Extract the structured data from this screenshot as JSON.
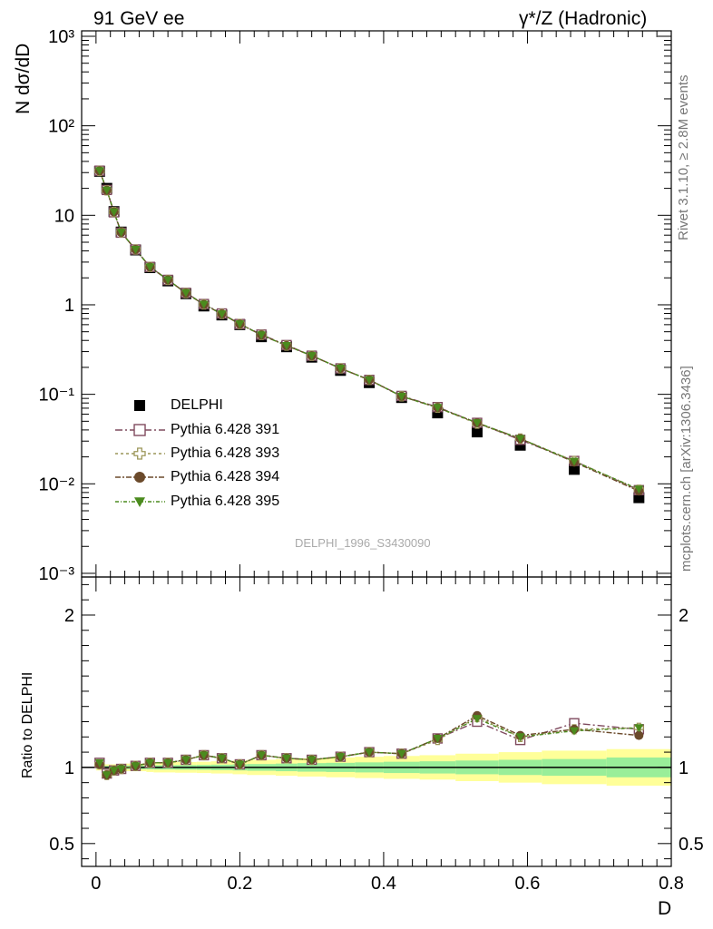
{
  "header": {
    "left": "91 GeV ee",
    "right": "γ*/Z (Hadronic)"
  },
  "side_labels": {
    "rivet": "Rivet 3.1.10, ≥ 2.8M events",
    "mcplots": "mcplots.cern.ch [arXiv:1306.3436]"
  },
  "watermark": "DELPHI_1996_S3430090",
  "chart_data": [
    {
      "type": "scatter",
      "panel": "main",
      "ylabel": "N dσ/dD",
      "yscale": "log",
      "ylim": [
        0.00091,
        1150
      ],
      "xlim": [
        -0.02,
        0.8
      ],
      "ytick_labels": [
        "10⁻³",
        "10⁻²",
        "10⁻¹",
        "1",
        "10",
        "10²",
        "10³"
      ],
      "legend_position": "lower-left",
      "x": [
        0.005,
        0.015,
        0.025,
        0.035,
        0.055,
        0.075,
        0.1,
        0.125,
        0.15,
        0.175,
        0.2,
        0.23,
        0.265,
        0.3,
        0.34,
        0.38,
        0.425,
        0.475,
        0.53,
        0.59,
        0.665,
        0.755
      ],
      "series": [
        {
          "name": "DELPHI",
          "color": "#000000",
          "marker": "square-filled",
          "values": [
            31,
            20,
            11,
            6.5,
            4.1,
            2.6,
            1.85,
            1.33,
            0.97,
            0.77,
            0.6,
            0.44,
            0.34,
            0.26,
            0.185,
            0.135,
            0.092,
            0.062,
            0.038,
            0.027,
            0.0145,
            0.007
          ]
        },
        {
          "name": "Pythia 6.428 391",
          "color": "#7f4a5e",
          "marker": "square-open",
          "values": [
            31.5,
            19.2,
            10.8,
            6.4,
            4.15,
            2.65,
            1.9,
            1.36,
            1.02,
            0.8,
            0.61,
            0.465,
            0.355,
            0.27,
            0.195,
            0.145,
            0.096,
            0.072,
            0.048,
            0.031,
            0.018,
            0.0085
          ]
        },
        {
          "name": "Pythia 6.428 393",
          "color": "#9c9659",
          "marker": "cross-open",
          "values": [
            31.3,
            19.0,
            10.9,
            6.45,
            4.15,
            2.65,
            1.9,
            1.35,
            1.01,
            0.79,
            0.61,
            0.46,
            0.35,
            0.27,
            0.195,
            0.145,
            0.095,
            0.071,
            0.047,
            0.032,
            0.018,
            0.0086
          ]
        },
        {
          "name": "Pythia 6.428 394",
          "color": "#6b4a2b",
          "marker": "circle-filled",
          "values": [
            31.4,
            19.0,
            10.9,
            6.45,
            4.15,
            2.65,
            1.9,
            1.35,
            1.01,
            0.79,
            0.61,
            0.46,
            0.35,
            0.27,
            0.195,
            0.145,
            0.095,
            0.071,
            0.048,
            0.032,
            0.0175,
            0.0083
          ]
        },
        {
          "name": "Pythia 6.428 395",
          "color": "#4b8b1e",
          "marker": "triangle-down-filled",
          "values": [
            31.4,
            19.1,
            10.9,
            6.45,
            4.15,
            2.65,
            1.9,
            1.36,
            1.01,
            0.79,
            0.61,
            0.46,
            0.35,
            0.27,
            0.195,
            0.145,
            0.095,
            0.071,
            0.048,
            0.032,
            0.0178,
            0.0087
          ]
        }
      ]
    },
    {
      "type": "scatter",
      "panel": "ratio",
      "ylabel": "Ratio to DELPHI",
      "xlabel": "D",
      "ylim": [
        0.35,
        2.25
      ],
      "xlim": [
        -0.02,
        0.8
      ],
      "xticks": [
        0,
        0.2,
        0.4,
        0.6,
        0.8
      ],
      "xtick_labels": [
        "0",
        "0.2",
        "0.4",
        "0.6",
        "0.8"
      ],
      "yticks": [
        0.5,
        1,
        2
      ],
      "ytick_labels": [
        "0.5",
        "1",
        "2"
      ],
      "reference_line": 1,
      "band_bins": [
        [
          0.0,
          0.01
        ],
        [
          0.01,
          0.02
        ],
        [
          0.02,
          0.03
        ],
        [
          0.03,
          0.04
        ],
        [
          0.04,
          0.07
        ],
        [
          0.07,
          0.08
        ],
        [
          0.08,
          0.11
        ],
        [
          0.11,
          0.14
        ],
        [
          0.14,
          0.16
        ],
        [
          0.16,
          0.19
        ],
        [
          0.19,
          0.21
        ],
        [
          0.21,
          0.25
        ],
        [
          0.25,
          0.28
        ],
        [
          0.28,
          0.32
        ],
        [
          0.32,
          0.36
        ],
        [
          0.36,
          0.4
        ],
        [
          0.4,
          0.45
        ],
        [
          0.45,
          0.5
        ],
        [
          0.5,
          0.56
        ],
        [
          0.56,
          0.62
        ],
        [
          0.62,
          0.71
        ],
        [
          0.71,
          0.8
        ]
      ],
      "band_stat": [
        0.01,
        0.01,
        0.01,
        0.01,
        0.012,
        0.013,
        0.014,
        0.015,
        0.016,
        0.018,
        0.02,
        0.022,
        0.025,
        0.028,
        0.03,
        0.033,
        0.037,
        0.04,
        0.045,
        0.05,
        0.055,
        0.065
      ],
      "band_total": [
        0.02,
        0.02,
        0.02,
        0.02,
        0.025,
        0.03,
        0.033,
        0.035,
        0.037,
        0.04,
        0.045,
        0.05,
        0.055,
        0.06,
        0.065,
        0.07,
        0.075,
        0.08,
        0.09,
        0.1,
        0.11,
        0.12
      ],
      "series": [
        {
          "name": "Pythia 6.428 391",
          "color": "#7f4a5e",
          "marker": "square-open",
          "values": [
            1.03,
            0.96,
            0.98,
            0.99,
            1.01,
            1.03,
            1.03,
            1.05,
            1.08,
            1.06,
            1.02,
            1.08,
            1.06,
            1.05,
            1.07,
            1.1,
            1.09,
            1.19,
            1.3,
            1.18,
            1.29,
            1.25
          ]
        },
        {
          "name": "Pythia 6.428 393",
          "color": "#9c9659",
          "marker": "cross-open",
          "values": [
            1.02,
            0.95,
            0.98,
            0.99,
            1.01,
            1.03,
            1.03,
            1.05,
            1.08,
            1.06,
            1.02,
            1.08,
            1.06,
            1.05,
            1.07,
            1.1,
            1.09,
            1.18,
            1.33,
            1.2,
            1.25,
            1.26
          ]
        },
        {
          "name": "Pythia 6.428 394",
          "color": "#6b4a2b",
          "marker": "circle-filled",
          "values": [
            1.02,
            0.95,
            0.98,
            0.99,
            1.01,
            1.03,
            1.03,
            1.05,
            1.08,
            1.06,
            1.02,
            1.08,
            1.06,
            1.05,
            1.07,
            1.1,
            1.09,
            1.19,
            1.34,
            1.21,
            1.25,
            1.21
          ]
        },
        {
          "name": "Pythia 6.428 395",
          "color": "#4b8b1e",
          "marker": "triangle-down-filled",
          "values": [
            1.03,
            0.95,
            0.98,
            0.99,
            1.01,
            1.03,
            1.03,
            1.05,
            1.08,
            1.06,
            1.02,
            1.08,
            1.06,
            1.05,
            1.07,
            1.1,
            1.09,
            1.19,
            1.32,
            1.2,
            1.24,
            1.26
          ]
        }
      ]
    }
  ]
}
